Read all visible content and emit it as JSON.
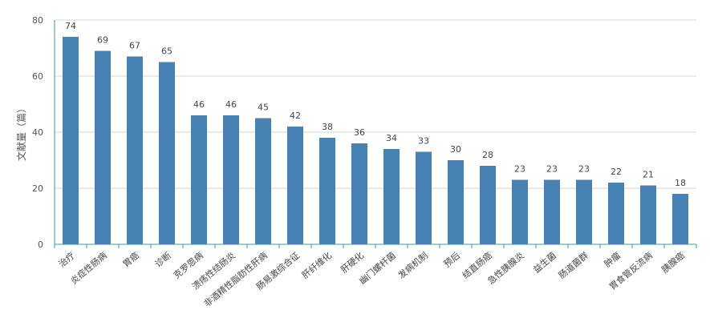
{
  "chart_data": {
    "type": "bar",
    "title": "",
    "xlabel": "",
    "ylabel": "文献量（篇）",
    "ylim": [
      0,
      80
    ],
    "yticks": [
      0,
      20,
      40,
      60,
      80
    ],
    "grid": true,
    "colors": {
      "bar": "#4682b4",
      "grid": "#d9d9d9",
      "axis": "#3a9a9a"
    },
    "categories": [
      "治疗",
      "炎症性肠病",
      "胃癌",
      "诊断",
      "克罗恩病",
      "溃疡性结肠炎",
      "非酒精性脂肪性肝病",
      "肠易激综合征",
      "肝纤维化",
      "肝硬化",
      "幽门螺杆菌",
      "发病机制",
      "预后",
      "结直肠癌",
      "急性胰腺炎",
      "益生菌",
      "肠道菌群",
      "肿瘤",
      "胃食管反流病",
      "胰腺癌"
    ],
    "values": [
      74,
      69,
      67,
      65,
      46,
      46,
      45,
      42,
      38,
      36,
      34,
      33,
      30,
      28,
      23,
      23,
      23,
      22,
      21,
      18
    ]
  }
}
